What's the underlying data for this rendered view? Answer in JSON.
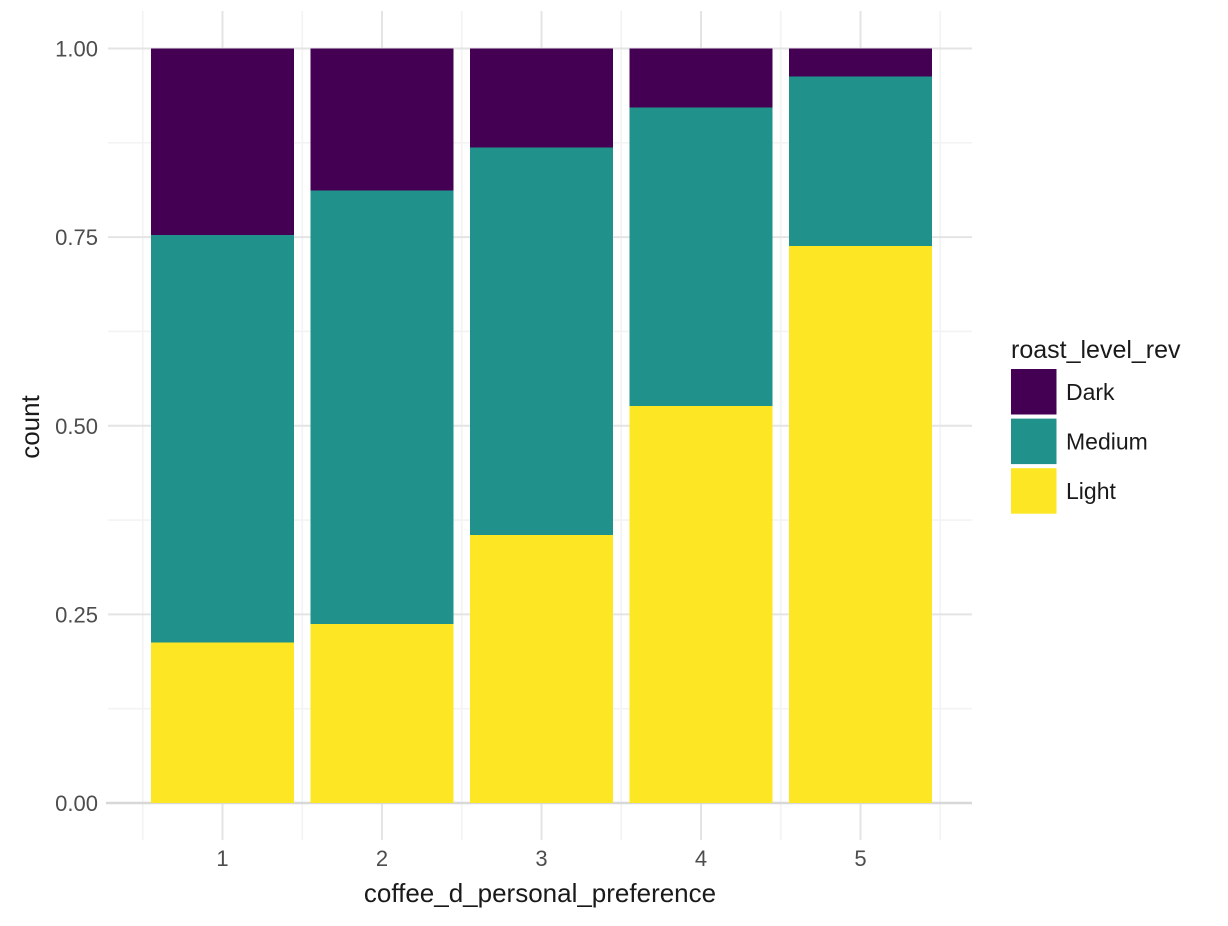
{
  "chart_data": {
    "type": "bar",
    "variant": "stacked-proportion",
    "title": "",
    "xlabel": "coffee_d_personal_preference",
    "ylabel": "count",
    "categories": [
      "1",
      "2",
      "3",
      "4",
      "5"
    ],
    "series": [
      {
        "name": "Light",
        "color": "#fde725",
        "values": [
          0.213,
          0.237,
          0.355,
          0.526,
          0.738
        ]
      },
      {
        "name": "Medium",
        "color": "#21918c",
        "values": [
          0.54,
          0.575,
          0.514,
          0.396,
          0.225
        ]
      },
      {
        "name": "Dark",
        "color": "#440154",
        "values": [
          0.247,
          0.188,
          0.131,
          0.078,
          0.037
        ]
      }
    ],
    "stack_order_bottom_to_top": [
      "Light",
      "Medium",
      "Dark"
    ],
    "ylim": [
      0,
      1
    ],
    "y_ticks": [
      {
        "value": 0.0,
        "label": "0.00"
      },
      {
        "value": 0.25,
        "label": "0.25"
      },
      {
        "value": 0.5,
        "label": "0.50"
      },
      {
        "value": 0.75,
        "label": "0.75"
      },
      {
        "value": 1.0,
        "label": "1.00"
      }
    ],
    "grid": {
      "major": true,
      "minor": true
    },
    "legend": {
      "title": "roast_level_rev",
      "position": "right",
      "entries": [
        {
          "label": "Dark",
          "color": "#440154"
        },
        {
          "label": "Medium",
          "color": "#21918c"
        },
        {
          "label": "Light",
          "color": "#fde725"
        }
      ]
    },
    "colors": {
      "grid_major": "#e4e4e4",
      "grid_minor": "#f3f3f3",
      "baseline": "#d8d8d8",
      "tick_label": "#4d4d4d",
      "title_text": "#1a1a1a",
      "background": "#ffffff"
    }
  }
}
